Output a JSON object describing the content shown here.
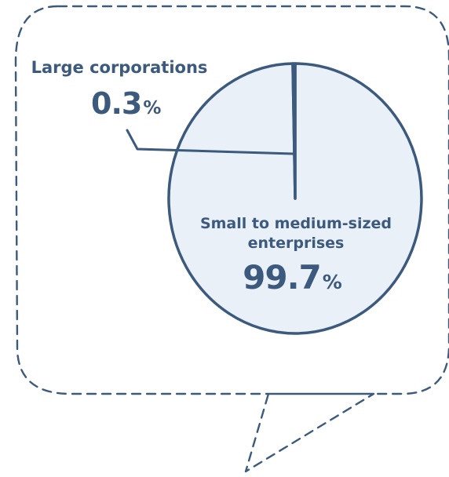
{
  "colors": {
    "outline": "#3c5a7d",
    "slice_fill": "#eaf0f7",
    "background": "#ffffff"
  },
  "chart_data": {
    "type": "pie",
    "slices": [
      {
        "label": "Small to medium-sized enterprises",
        "label_lines": [
          "Small to medium-sized",
          "enterprises"
        ],
        "value": 99.7,
        "value_text": "99.7",
        "unit": "%"
      },
      {
        "label": "Large corporations",
        "label_lines": [
          "Large corporations"
        ],
        "value": 0.3,
        "value_text": "0.3",
        "unit": "%"
      }
    ],
    "legend": "none",
    "grid": false,
    "title": ""
  }
}
